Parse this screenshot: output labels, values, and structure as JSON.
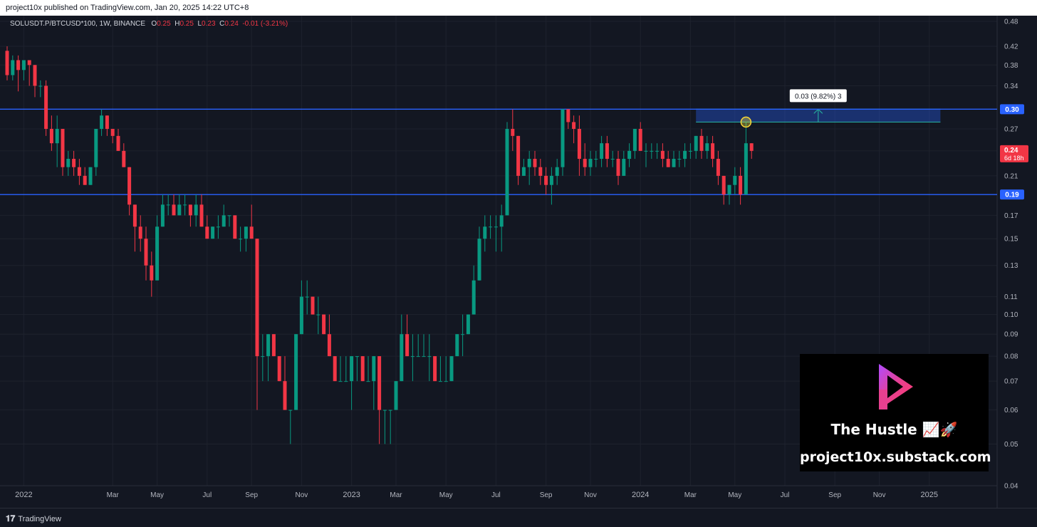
{
  "header": {
    "publish_line": "project10x published on TradingView.com, Jan 20, 2025 14:22 UTC+8",
    "symbol_line": "SOLUSDT.P/BTCUSD*100, 1W, BINANCE",
    "o_label": "O",
    "o_value": "0.25",
    "h_label": "H",
    "h_value": "0.25",
    "l_label": "L",
    "l_value": "0.23",
    "c_label": "C",
    "c_value": "0.24",
    "change": "-0.01 (-3.21%)"
  },
  "footer": {
    "brand": "TradingView"
  },
  "promo": {
    "title": "The Hustle 📈🚀",
    "url": "project10x.substack.com"
  },
  "colors": {
    "background": "#131722",
    "up": "#089981",
    "down": "#f23645",
    "hline": "#2962ff",
    "measure": "#26a69a",
    "grid": "#1e222d",
    "axis_text": "#b2b5be"
  },
  "chart_data": {
    "type": "candlestick",
    "scale": "log",
    "timeframe": "1W",
    "ylim": [
      0.04,
      0.48
    ],
    "y_ticks": [
      0.48,
      0.42,
      0.38,
      0.34,
      0.3,
      0.27,
      0.24,
      0.21,
      0.19,
      0.17,
      0.15,
      0.13,
      0.11,
      0.1,
      0.09,
      0.08,
      0.07,
      0.06,
      0.05,
      0.04
    ],
    "x_ticks": [
      "2022",
      "Mar",
      "May",
      "Jul",
      "Sep",
      "Nov",
      "2023",
      "Mar",
      "May",
      "Jul",
      "Sep",
      "Nov",
      "2024",
      "Mar",
      "May",
      "Jul",
      "Sep",
      "Nov",
      "2025"
    ],
    "x_tick_weeks": [
      3,
      19,
      27,
      36,
      44,
      53,
      62,
      70,
      79,
      88,
      97,
      105,
      114,
      123,
      131,
      140,
      149,
      157,
      166
    ],
    "horizontal_lines": [
      {
        "value": 0.3,
        "label": "0.30"
      },
      {
        "value": 0.19,
        "label": "0.19"
      }
    ],
    "last_price_label": {
      "value": 0.24,
      "label": "0.24",
      "countdown": "6d 18h"
    },
    "measure_box": {
      "from_week": 124,
      "to_week": 168,
      "low": 0.28,
      "high": 0.3,
      "label": "0.03 (9.82%) 3"
    },
    "candles": [
      [
        0.41,
        0.42,
        0.35,
        0.36
      ],
      [
        0.36,
        0.4,
        0.35,
        0.39
      ],
      [
        0.39,
        0.4,
        0.33,
        0.37
      ],
      [
        0.37,
        0.39,
        0.35,
        0.39
      ],
      [
        0.39,
        0.39,
        0.34,
        0.38
      ],
      [
        0.38,
        0.38,
        0.32,
        0.34
      ],
      [
        0.34,
        0.35,
        0.32,
        0.34
      ],
      [
        0.34,
        0.35,
        0.26,
        0.27
      ],
      [
        0.27,
        0.29,
        0.24,
        0.25
      ],
      [
        0.25,
        0.29,
        0.22,
        0.27
      ],
      [
        0.27,
        0.27,
        0.21,
        0.22
      ],
      [
        0.22,
        0.24,
        0.21,
        0.23
      ],
      [
        0.23,
        0.24,
        0.21,
        0.22
      ],
      [
        0.22,
        0.23,
        0.2,
        0.21
      ],
      [
        0.21,
        0.22,
        0.2,
        0.2
      ],
      [
        0.2,
        0.22,
        0.2,
        0.22
      ],
      [
        0.22,
        0.27,
        0.21,
        0.27
      ],
      [
        0.27,
        0.3,
        0.26,
        0.29
      ],
      [
        0.29,
        0.29,
        0.26,
        0.27
      ],
      [
        0.27,
        0.27,
        0.25,
        0.26
      ],
      [
        0.26,
        0.27,
        0.24,
        0.24
      ],
      [
        0.24,
        0.25,
        0.22,
        0.22
      ],
      [
        0.22,
        0.22,
        0.17,
        0.18
      ],
      [
        0.18,
        0.18,
        0.14,
        0.16
      ],
      [
        0.16,
        0.17,
        0.14,
        0.15
      ],
      [
        0.15,
        0.16,
        0.12,
        0.13
      ],
      [
        0.13,
        0.14,
        0.11,
        0.12
      ],
      [
        0.12,
        0.17,
        0.12,
        0.16
      ],
      [
        0.16,
        0.19,
        0.16,
        0.18
      ],
      [
        0.18,
        0.19,
        0.17,
        0.18
      ],
      [
        0.18,
        0.19,
        0.17,
        0.17
      ],
      [
        0.17,
        0.19,
        0.17,
        0.18
      ],
      [
        0.18,
        0.19,
        0.17,
        0.18
      ],
      [
        0.18,
        0.18,
        0.16,
        0.17
      ],
      [
        0.17,
        0.19,
        0.16,
        0.18
      ],
      [
        0.18,
        0.19,
        0.16,
        0.16
      ],
      [
        0.16,
        0.17,
        0.15,
        0.15
      ],
      [
        0.15,
        0.16,
        0.15,
        0.16
      ],
      [
        0.16,
        0.17,
        0.15,
        0.16
      ],
      [
        0.16,
        0.18,
        0.16,
        0.17
      ],
      [
        0.17,
        0.17,
        0.16,
        0.17
      ],
      [
        0.17,
        0.17,
        0.15,
        0.15
      ],
      [
        0.15,
        0.16,
        0.14,
        0.15
      ],
      [
        0.15,
        0.16,
        0.14,
        0.16
      ],
      [
        0.16,
        0.18,
        0.15,
        0.15
      ],
      [
        0.15,
        0.15,
        0.06,
        0.08
      ],
      [
        0.08,
        0.09,
        0.07,
        0.08
      ],
      [
        0.08,
        0.09,
        0.07,
        0.09
      ],
      [
        0.09,
        0.09,
        0.08,
        0.08
      ],
      [
        0.08,
        0.08,
        0.07,
        0.07
      ],
      [
        0.07,
        0.08,
        0.06,
        0.06
      ],
      [
        0.06,
        0.06,
        0.05,
        0.06
      ],
      [
        0.06,
        0.09,
        0.06,
        0.09
      ],
      [
        0.09,
        0.12,
        0.09,
        0.11
      ],
      [
        0.11,
        0.12,
        0.1,
        0.11
      ],
      [
        0.11,
        0.11,
        0.1,
        0.1
      ],
      [
        0.1,
        0.11,
        0.09,
        0.1
      ],
      [
        0.1,
        0.1,
        0.09,
        0.09
      ],
      [
        0.09,
        0.1,
        0.08,
        0.08
      ],
      [
        0.08,
        0.08,
        0.07,
        0.07
      ],
      [
        0.07,
        0.08,
        0.07,
        0.07
      ],
      [
        0.07,
        0.08,
        0.07,
        0.07
      ],
      [
        0.07,
        0.08,
        0.06,
        0.08
      ],
      [
        0.08,
        0.08,
        0.07,
        0.08
      ],
      [
        0.08,
        0.08,
        0.07,
        0.07
      ],
      [
        0.07,
        0.08,
        0.07,
        0.07
      ],
      [
        0.07,
        0.08,
        0.06,
        0.08
      ],
      [
        0.08,
        0.08,
        0.05,
        0.06
      ],
      [
        0.06,
        0.06,
        0.05,
        0.06
      ],
      [
        0.06,
        0.06,
        0.05,
        0.06
      ],
      [
        0.06,
        0.07,
        0.06,
        0.07
      ],
      [
        0.07,
        0.1,
        0.07,
        0.09
      ],
      [
        0.09,
        0.1,
        0.08,
        0.08
      ],
      [
        0.08,
        0.09,
        0.07,
        0.08
      ],
      [
        0.08,
        0.09,
        0.08,
        0.08
      ],
      [
        0.08,
        0.09,
        0.08,
        0.08
      ],
      [
        0.08,
        0.09,
        0.07,
        0.08
      ],
      [
        0.08,
        0.08,
        0.07,
        0.07
      ],
      [
        0.07,
        0.08,
        0.07,
        0.07
      ],
      [
        0.07,
        0.08,
        0.07,
        0.07
      ],
      [
        0.07,
        0.08,
        0.07,
        0.08
      ],
      [
        0.08,
        0.09,
        0.08,
        0.09
      ],
      [
        0.09,
        0.1,
        0.08,
        0.09
      ],
      [
        0.09,
        0.1,
        0.09,
        0.1
      ],
      [
        0.1,
        0.13,
        0.1,
        0.12
      ],
      [
        0.12,
        0.16,
        0.12,
        0.15
      ],
      [
        0.15,
        0.17,
        0.14,
        0.16
      ],
      [
        0.16,
        0.17,
        0.15,
        0.16
      ],
      [
        0.16,
        0.17,
        0.14,
        0.16
      ],
      [
        0.16,
        0.18,
        0.14,
        0.17
      ],
      [
        0.17,
        0.28,
        0.17,
        0.27
      ],
      [
        0.27,
        0.3,
        0.24,
        0.26
      ],
      [
        0.26,
        0.26,
        0.2,
        0.21
      ],
      [
        0.21,
        0.23,
        0.21,
        0.22
      ],
      [
        0.22,
        0.24,
        0.2,
        0.23
      ],
      [
        0.23,
        0.24,
        0.21,
        0.22
      ],
      [
        0.22,
        0.23,
        0.2,
        0.21
      ],
      [
        0.21,
        0.22,
        0.19,
        0.2
      ],
      [
        0.2,
        0.22,
        0.18,
        0.21
      ],
      [
        0.21,
        0.23,
        0.2,
        0.22
      ],
      [
        0.22,
        0.3,
        0.21,
        0.3
      ],
      [
        0.3,
        0.3,
        0.27,
        0.28
      ],
      [
        0.28,
        0.29,
        0.25,
        0.27
      ],
      [
        0.27,
        0.29,
        0.21,
        0.23
      ],
      [
        0.23,
        0.25,
        0.21,
        0.22
      ],
      [
        0.22,
        0.24,
        0.21,
        0.23
      ],
      [
        0.23,
        0.24,
        0.22,
        0.23
      ],
      [
        0.23,
        0.26,
        0.22,
        0.25
      ],
      [
        0.25,
        0.26,
        0.22,
        0.23
      ],
      [
        0.23,
        0.24,
        0.22,
        0.23
      ],
      [
        0.23,
        0.24,
        0.2,
        0.21
      ],
      [
        0.21,
        0.24,
        0.21,
        0.23
      ],
      [
        0.23,
        0.25,
        0.22,
        0.24
      ],
      [
        0.24,
        0.27,
        0.23,
        0.27
      ],
      [
        0.27,
        0.28,
        0.24,
        0.24
      ],
      [
        0.24,
        0.25,
        0.22,
        0.24
      ],
      [
        0.24,
        0.25,
        0.23,
        0.24
      ],
      [
        0.24,
        0.25,
        0.23,
        0.24
      ],
      [
        0.24,
        0.25,
        0.22,
        0.23
      ],
      [
        0.23,
        0.24,
        0.22,
        0.22
      ],
      [
        0.22,
        0.24,
        0.22,
        0.23
      ],
      [
        0.23,
        0.24,
        0.22,
        0.23
      ],
      [
        0.23,
        0.25,
        0.22,
        0.24
      ],
      [
        0.24,
        0.25,
        0.23,
        0.24
      ],
      [
        0.24,
        0.26,
        0.23,
        0.26
      ],
      [
        0.26,
        0.27,
        0.23,
        0.24
      ],
      [
        0.24,
        0.26,
        0.23,
        0.25
      ],
      [
        0.25,
        0.26,
        0.22,
        0.23
      ],
      [
        0.23,
        0.24,
        0.2,
        0.21
      ],
      [
        0.21,
        0.21,
        0.18,
        0.19
      ],
      [
        0.19,
        0.2,
        0.18,
        0.2
      ],
      [
        0.2,
        0.22,
        0.19,
        0.21
      ],
      [
        0.21,
        0.22,
        0.18,
        0.19
      ],
      [
        0.19,
        0.28,
        0.19,
        0.25
      ],
      [
        0.25,
        0.25,
        0.23,
        0.24
      ]
    ]
  }
}
